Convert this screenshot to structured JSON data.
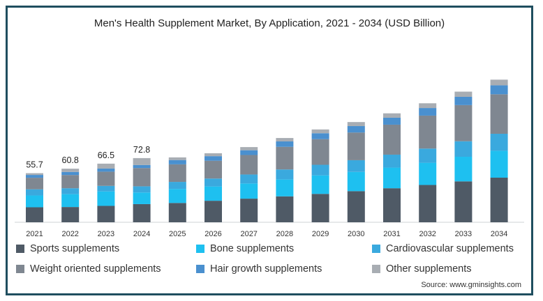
{
  "chart_data": {
    "type": "bar",
    "stacked": true,
    "title": "Men's Health Supplement Market, By Application, 2021 - 2034 (USD Billion)",
    "categories": [
      "2021",
      "2022",
      "2023",
      "2024",
      "2025",
      "2026",
      "2027",
      "2028",
      "2029",
      "2030",
      "2031",
      "2032",
      "2033",
      "2034"
    ],
    "series": [
      {
        "name": "Sports supplements",
        "color": "#4f5a66",
        "values": [
          17.0,
          17.3,
          18.6,
          20.6,
          21.9,
          24.4,
          26.8,
          29.4,
          32.2,
          35.3,
          38.6,
          42.3,
          46.4,
          50.6
        ]
      },
      {
        "name": "Bone supplements",
        "color": "#1ec0f0",
        "values": [
          13.4,
          14.6,
          16.4,
          13.2,
          15.9,
          16.2,
          17.2,
          19.1,
          21.0,
          21.8,
          23.4,
          25.2,
          27.9,
          30.5
        ]
      },
      {
        "name": "Cardiovascular supplements",
        "color": "#3aa9de",
        "values": [
          7.0,
          6.7,
          6.3,
          7.0,
          8.0,
          9.0,
          10.2,
          11.4,
          12.0,
          13.3,
          14.7,
          16.1,
          17.6,
          19.3
        ]
      },
      {
        "name": "Weight oriented supplements",
        "color": "#7f8791",
        "values": [
          13.1,
          15.0,
          16.1,
          20.7,
          19.9,
          20.2,
          22.1,
          25.7,
          29.1,
          31.4,
          34.0,
          37.4,
          41.0,
          44.8
        ]
      },
      {
        "name": "Hair growth supplements",
        "color": "#4a90cf",
        "values": [
          3.2,
          3.5,
          3.5,
          3.5,
          4.9,
          5.2,
          5.4,
          6.1,
          6.7,
          7.3,
          7.9,
          8.6,
          9.4,
          10.2
        ]
      },
      {
        "name": "Other supplements",
        "color": "#a8adb3",
        "values": [
          2.0,
          3.7,
          5.6,
          7.8,
          3.0,
          3.3,
          3.6,
          3.9,
          4.3,
          4.6,
          5.0,
          5.4,
          5.9,
          6.4
        ]
      }
    ],
    "data_labels": [
      {
        "category": "2021",
        "label": "55.7"
      },
      {
        "category": "2022",
        "label": "60.8"
      },
      {
        "category": "2023",
        "label": "66.5"
      },
      {
        "category": "2024",
        "label": "72.8"
      }
    ],
    "ylim": [
      0,
      200
    ],
    "grid": false,
    "legend_position": "bottom"
  },
  "source": "Source: www.gminsights.com"
}
